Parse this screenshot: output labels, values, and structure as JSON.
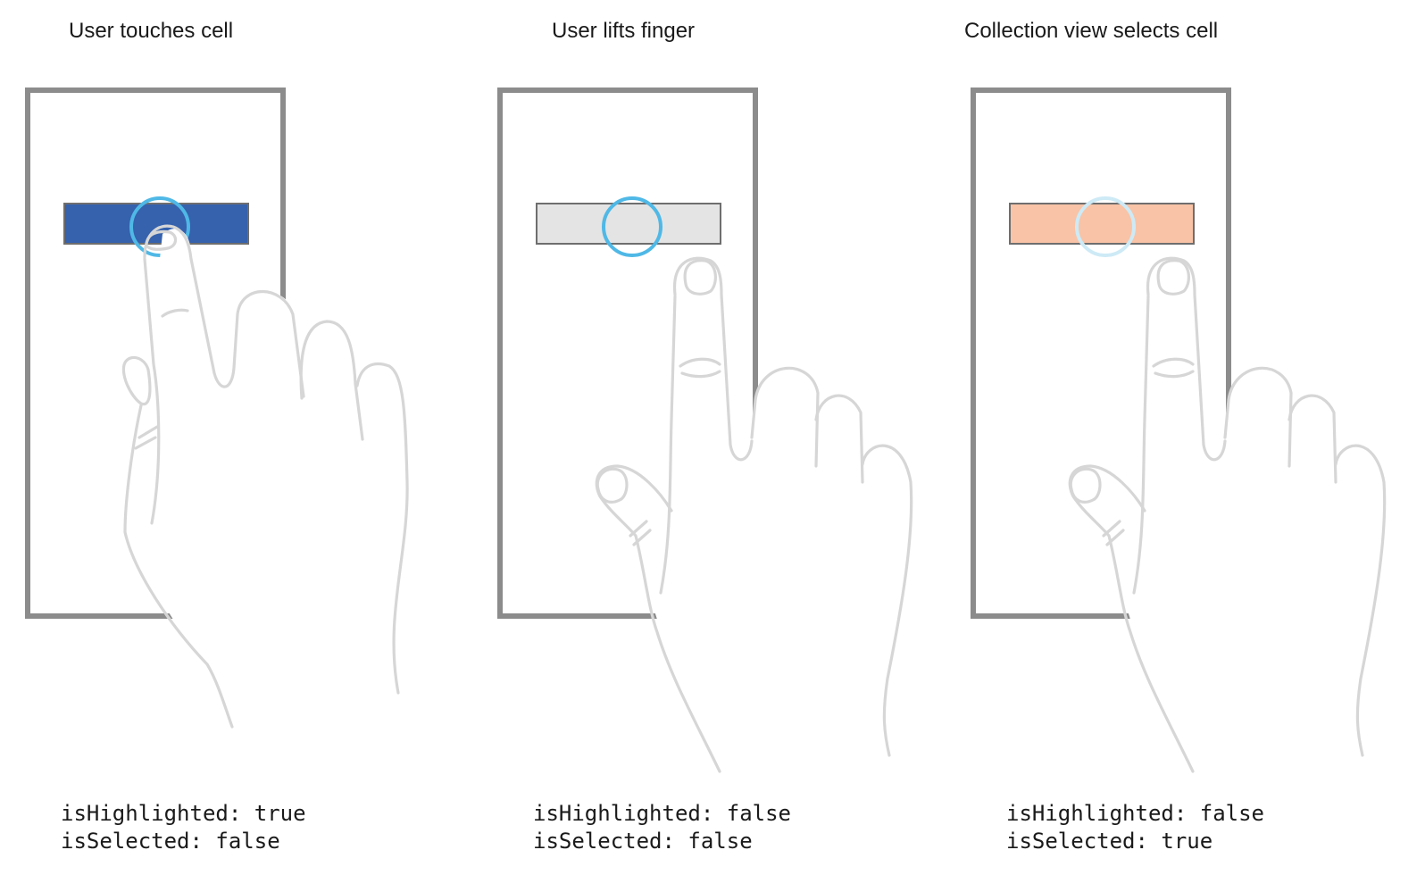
{
  "colors": {
    "frame": "#8c8c8c",
    "touch_ring": "#4fb8e6",
    "touch_ring_faded": "#cdeaf6"
  },
  "icons": {
    "hand": "hand-pointing-icon",
    "touch": "touch-ring-icon"
  },
  "panels": [
    {
      "title": "User touches cell",
      "cell_color": "#3561ad",
      "touch_ring": "active",
      "finger": "on-cell",
      "state_lines": [
        "isHighlighted: true",
        "isSelected: false"
      ]
    },
    {
      "title": "User lifts finger",
      "cell_color": "#e4e4e4",
      "touch_ring": "active",
      "finger": "lifted",
      "state_lines": [
        "isHighlighted: false",
        "isSelected: false"
      ]
    },
    {
      "title": "Collection view selects cell",
      "cell_color": "#f8c3a6",
      "touch_ring": "faded",
      "finger": "lifted",
      "state_lines": [
        "isHighlighted: false",
        "isSelected: true"
      ]
    }
  ]
}
